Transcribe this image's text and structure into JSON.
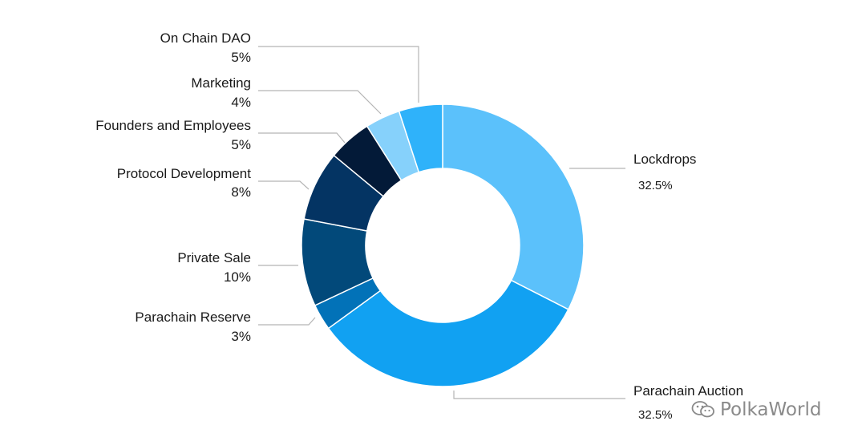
{
  "chart_data": {
    "type": "pie",
    "donut": true,
    "slices": [
      {
        "label": "Lockdrops",
        "pct_text": "32.5%",
        "value": 32.5,
        "color": "#5bc1fb"
      },
      {
        "label": "Parachain Auction",
        "pct_text": "32.5%",
        "value": 32.5,
        "color": "#11a1f2"
      },
      {
        "label": "Parachain Reserve",
        "pct_text": "3%",
        "value": 3,
        "color": "#0272b8"
      },
      {
        "label": "Private Sale",
        "pct_text": "10%",
        "value": 10,
        "color": "#02497a"
      },
      {
        "label": "Protocol Development",
        "pct_text": "8%",
        "value": 8,
        "color": "#043463"
      },
      {
        "label": "Founders and Employees",
        "pct_text": "5%",
        "value": 5,
        "color": "#031a38"
      },
      {
        "label": "Marketing",
        "pct_text": "4%",
        "value": 4,
        "color": "#86d1fb"
      },
      {
        "label": "On Chain DAO",
        "pct_text": "5%",
        "value": 5,
        "color": "#2fb2fa"
      }
    ]
  },
  "watermark": {
    "text": "PolkaWorld"
  }
}
